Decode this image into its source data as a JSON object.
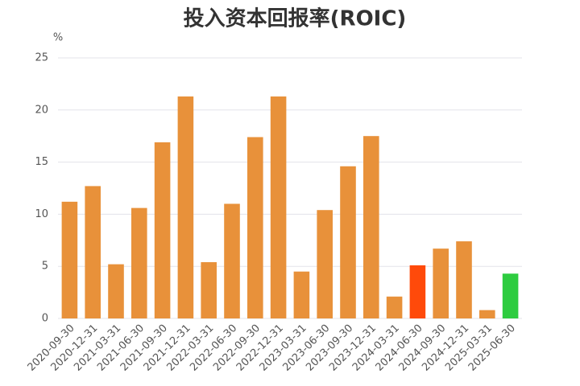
{
  "chart_data": {
    "type": "bar",
    "title": "投入资本回报率(ROIC)",
    "y_unit": "%",
    "categories": [
      "2020-09-30",
      "2020-12-31",
      "2021-03-31",
      "2021-06-30",
      "2021-09-30",
      "2021-12-31",
      "2022-03-31",
      "2022-06-30",
      "2022-09-30",
      "2022-12-31",
      "2023-03-31",
      "2023-06-30",
      "2023-09-30",
      "2023-12-31",
      "2024-03-31",
      "2024-06-30",
      "2024-09-30",
      "2024-12-31",
      "2025-03-31",
      "2025-06-30"
    ],
    "values": [
      11.2,
      12.7,
      5.2,
      10.6,
      16.9,
      21.3,
      5.4,
      11.0,
      17.4,
      21.3,
      4.5,
      10.4,
      14.6,
      17.5,
      2.1,
      5.1,
      6.7,
      7.4,
      0.8,
      4.3
    ],
    "colors": [
      "#e8913a",
      "#e8913a",
      "#e8913a",
      "#e8913a",
      "#e8913a",
      "#e8913a",
      "#e8913a",
      "#e8913a",
      "#e8913a",
      "#e8913a",
      "#e8913a",
      "#e8913a",
      "#e8913a",
      "#e8913a",
      "#e8913a",
      "#ff4a0a",
      "#e8913a",
      "#e8913a",
      "#e8913a",
      "#2ecc40"
    ],
    "ylim": [
      0,
      25
    ],
    "yticks": [
      0,
      5,
      10,
      15,
      20,
      25
    ],
    "grid": true
  }
}
